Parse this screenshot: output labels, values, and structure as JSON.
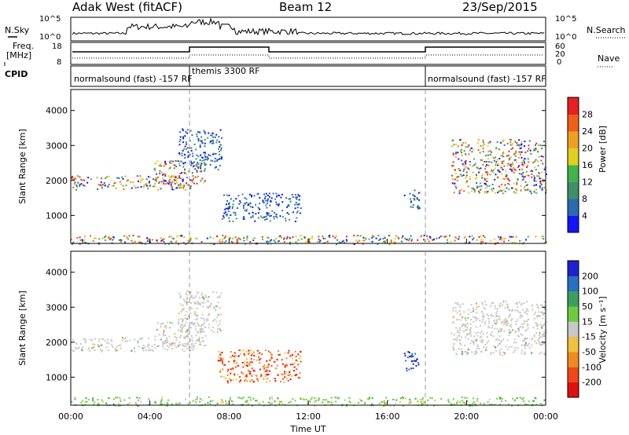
{
  "header": {
    "station": "Adak West (fitACF)",
    "beam": "Beam 12",
    "date": "23/Sep/2015"
  },
  "left_labels": {
    "nsky": "N.Sky",
    "freq_line1": "Freq.",
    "freq_line2": "[MHz]",
    "cpid": "CPID"
  },
  "right_labels": {
    "nsearch": "N.Search",
    "nave": "Nave"
  },
  "strip_ticks": {
    "noise_top": "10^5",
    "noise_bottom": "10^0",
    "freq_top": "18",
    "freq_bottom": "8",
    "nave_top": "60",
    "nave_mid": "20",
    "nave_bottom": "0"
  },
  "cpid_modes": [
    {
      "label": "normalsound (fast) -157 RF",
      "start_hour": 0,
      "end_hour": 6
    },
    {
      "label": "themis 3300 RF",
      "start_hour": 6,
      "end_hour": 18
    },
    {
      "label": "normalsound (fast) -157 RF",
      "start_hour": 18,
      "end_hour": 24
    }
  ],
  "colorbars": {
    "power": {
      "label": "Power [dB]",
      "ticks": [
        "4",
        "8",
        "12",
        "16",
        "20",
        "24",
        "28"
      ],
      "colors": [
        "#1414ff",
        "#2a6ab0",
        "#3f8f6a",
        "#43b34a",
        "#e0d020",
        "#f0a020",
        "#f06018",
        "#e82020"
      ]
    },
    "velocity": {
      "label": "Velocity [m s⁻¹]",
      "ticks": [
        "200",
        "100",
        "50",
        "15",
        "-15",
        "-50",
        "-100",
        "-200"
      ],
      "colors": [
        "#2020d0",
        "#2a70c0",
        "#3aa060",
        "#6acc40",
        "#c8c8c8",
        "#f0c040",
        "#f08a20",
        "#f04818",
        "#e01010"
      ]
    }
  },
  "chart_data": [
    {
      "type": "heatmap",
      "name": "power",
      "ylabel": "Slant Range [km]",
      "yticks": [
        "1000",
        "2000",
        "3000",
        "4000"
      ],
      "ylim": [
        200,
        4600
      ],
      "xlim": [
        0,
        24
      ],
      "regions": [
        {
          "x": [
            0,
            6.2
          ],
          "y": [
            1750,
            2150
          ],
          "level": "mixed"
        },
        {
          "x": [
            4.2,
            6.8
          ],
          "y": [
            1900,
            2600
          ],
          "level": "mixed"
        },
        {
          "x": [
            5.4,
            7.6
          ],
          "y": [
            2300,
            3500
          ],
          "level": "low"
        },
        {
          "x": [
            7.6,
            11.6
          ],
          "y": [
            850,
            1650
          ],
          "level": "low"
        },
        {
          "x": [
            16.8,
            17.6
          ],
          "y": [
            1200,
            1750
          ],
          "level": "low"
        },
        {
          "x": [
            19.2,
            24
          ],
          "y": [
            1650,
            3200
          ],
          "level": "mixed"
        },
        {
          "x": [
            0,
            24
          ],
          "y": [
            200,
            450
          ],
          "level": "mixed"
        }
      ]
    },
    {
      "type": "heatmap",
      "name": "velocity",
      "ylabel": "Slant Range [km]",
      "yticks": [
        "1000",
        "2000",
        "3000",
        "4000"
      ],
      "ylim": [
        200,
        4600
      ],
      "xlim": [
        0,
        24
      ],
      "regions": [
        {
          "x": [
            0,
            6.2
          ],
          "y": [
            1750,
            2150
          ],
          "level": "ground"
        },
        {
          "x": [
            4.2,
            6.8
          ],
          "y": [
            1900,
            2600
          ],
          "level": "ground"
        },
        {
          "x": [
            5.4,
            7.6
          ],
          "y": [
            2300,
            3500
          ],
          "level": "ground"
        },
        {
          "x": [
            7.4,
            11.6
          ],
          "y": [
            850,
            1800
          ],
          "level": "negative"
        },
        {
          "x": [
            16.8,
            17.6
          ],
          "y": [
            1200,
            1750
          ],
          "level": "positive"
        },
        {
          "x": [
            19.2,
            24
          ],
          "y": [
            1650,
            3200
          ],
          "level": "ground"
        },
        {
          "x": [
            0,
            24
          ],
          "y": [
            200,
            450
          ],
          "level": "small-positive"
        }
      ]
    }
  ],
  "xaxis": {
    "label": "Time UT",
    "ticks": [
      "00:00",
      "04:00",
      "08:00",
      "12:00",
      "16:00",
      "20:00",
      "00:00"
    ]
  }
}
